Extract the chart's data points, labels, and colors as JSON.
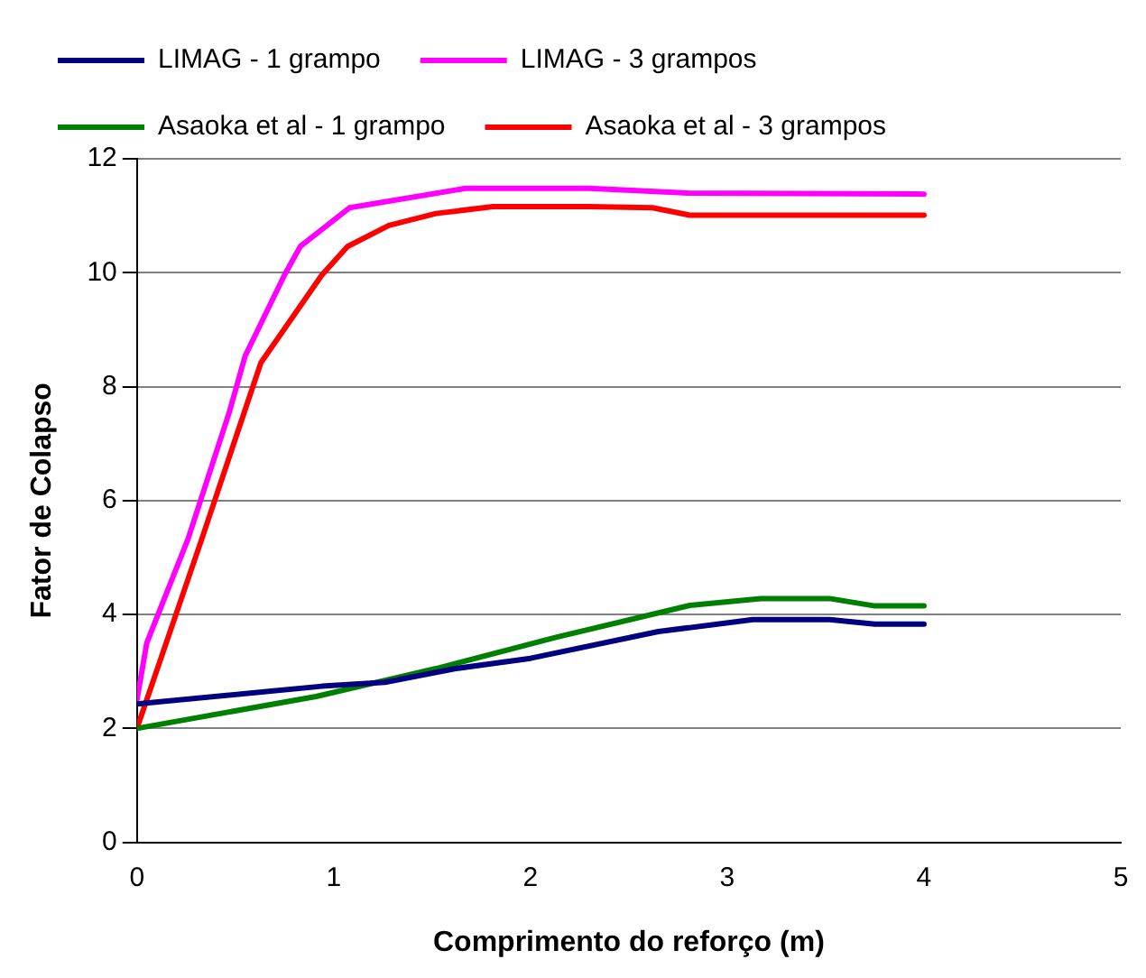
{
  "chart_data": {
    "type": "line",
    "xlabel": "Comprimento do reforço (m)",
    "ylabel": "Fator de Colapso",
    "xlim": [
      0,
      5
    ],
    "xticks": [
      0,
      1,
      2,
      3,
      4,
      5
    ],
    "ylim": [
      0,
      12
    ],
    "yticks": [
      0,
      2,
      4,
      6,
      8,
      10,
      12
    ],
    "grid": "y",
    "legend": "top",
    "marker": "none",
    "line_style": "solid",
    "series": [
      {
        "name": "LIMAG - 1 grampo",
        "color": "#000080",
        "x": [
          0,
          0.94,
          1.26,
          1.62,
          2.0,
          2.65,
          3.13,
          3.52,
          3.75,
          4
        ],
        "values": [
          2.43,
          2.74,
          2.81,
          3.05,
          3.23,
          3.7,
          3.91,
          3.91,
          3.83,
          3.83
        ]
      },
      {
        "name": "LIMAG - 3 grampos",
        "color": "#ff00ff",
        "x": [
          0,
          0.05,
          0.26,
          0.47,
          0.55,
          0.75,
          0.83,
          1.08,
          1.67,
          2.3,
          2.8,
          4
        ],
        "values": [
          2.5,
          3.5,
          5.33,
          7.56,
          8.54,
          9.96,
          10.46,
          11.14,
          11.48,
          11.48,
          11.4,
          11.38
        ]
      },
      {
        "name": "Asaoka et al - 1 grampo",
        "color": "#008000",
        "x": [
          0,
          0.91,
          1.52,
          2.13,
          2.81,
          3.17,
          3.52,
          3.75,
          4
        ],
        "values": [
          2.0,
          2.56,
          3.05,
          3.6,
          4.16,
          4.28,
          4.28,
          4.15,
          4.15
        ]
      },
      {
        "name": "Asaoka et al - 3 grampos",
        "color": "#ff0000",
        "x": [
          0,
          0.33,
          0.63,
          0.94,
          1.07,
          1.28,
          1.52,
          1.81,
          2.3,
          2.62,
          2.81,
          4
        ],
        "values": [
          2.0,
          5.33,
          8.42,
          9.96,
          10.46,
          10.83,
          11.04,
          11.16,
          11.16,
          11.14,
          11.01,
          11.01
        ]
      }
    ]
  }
}
